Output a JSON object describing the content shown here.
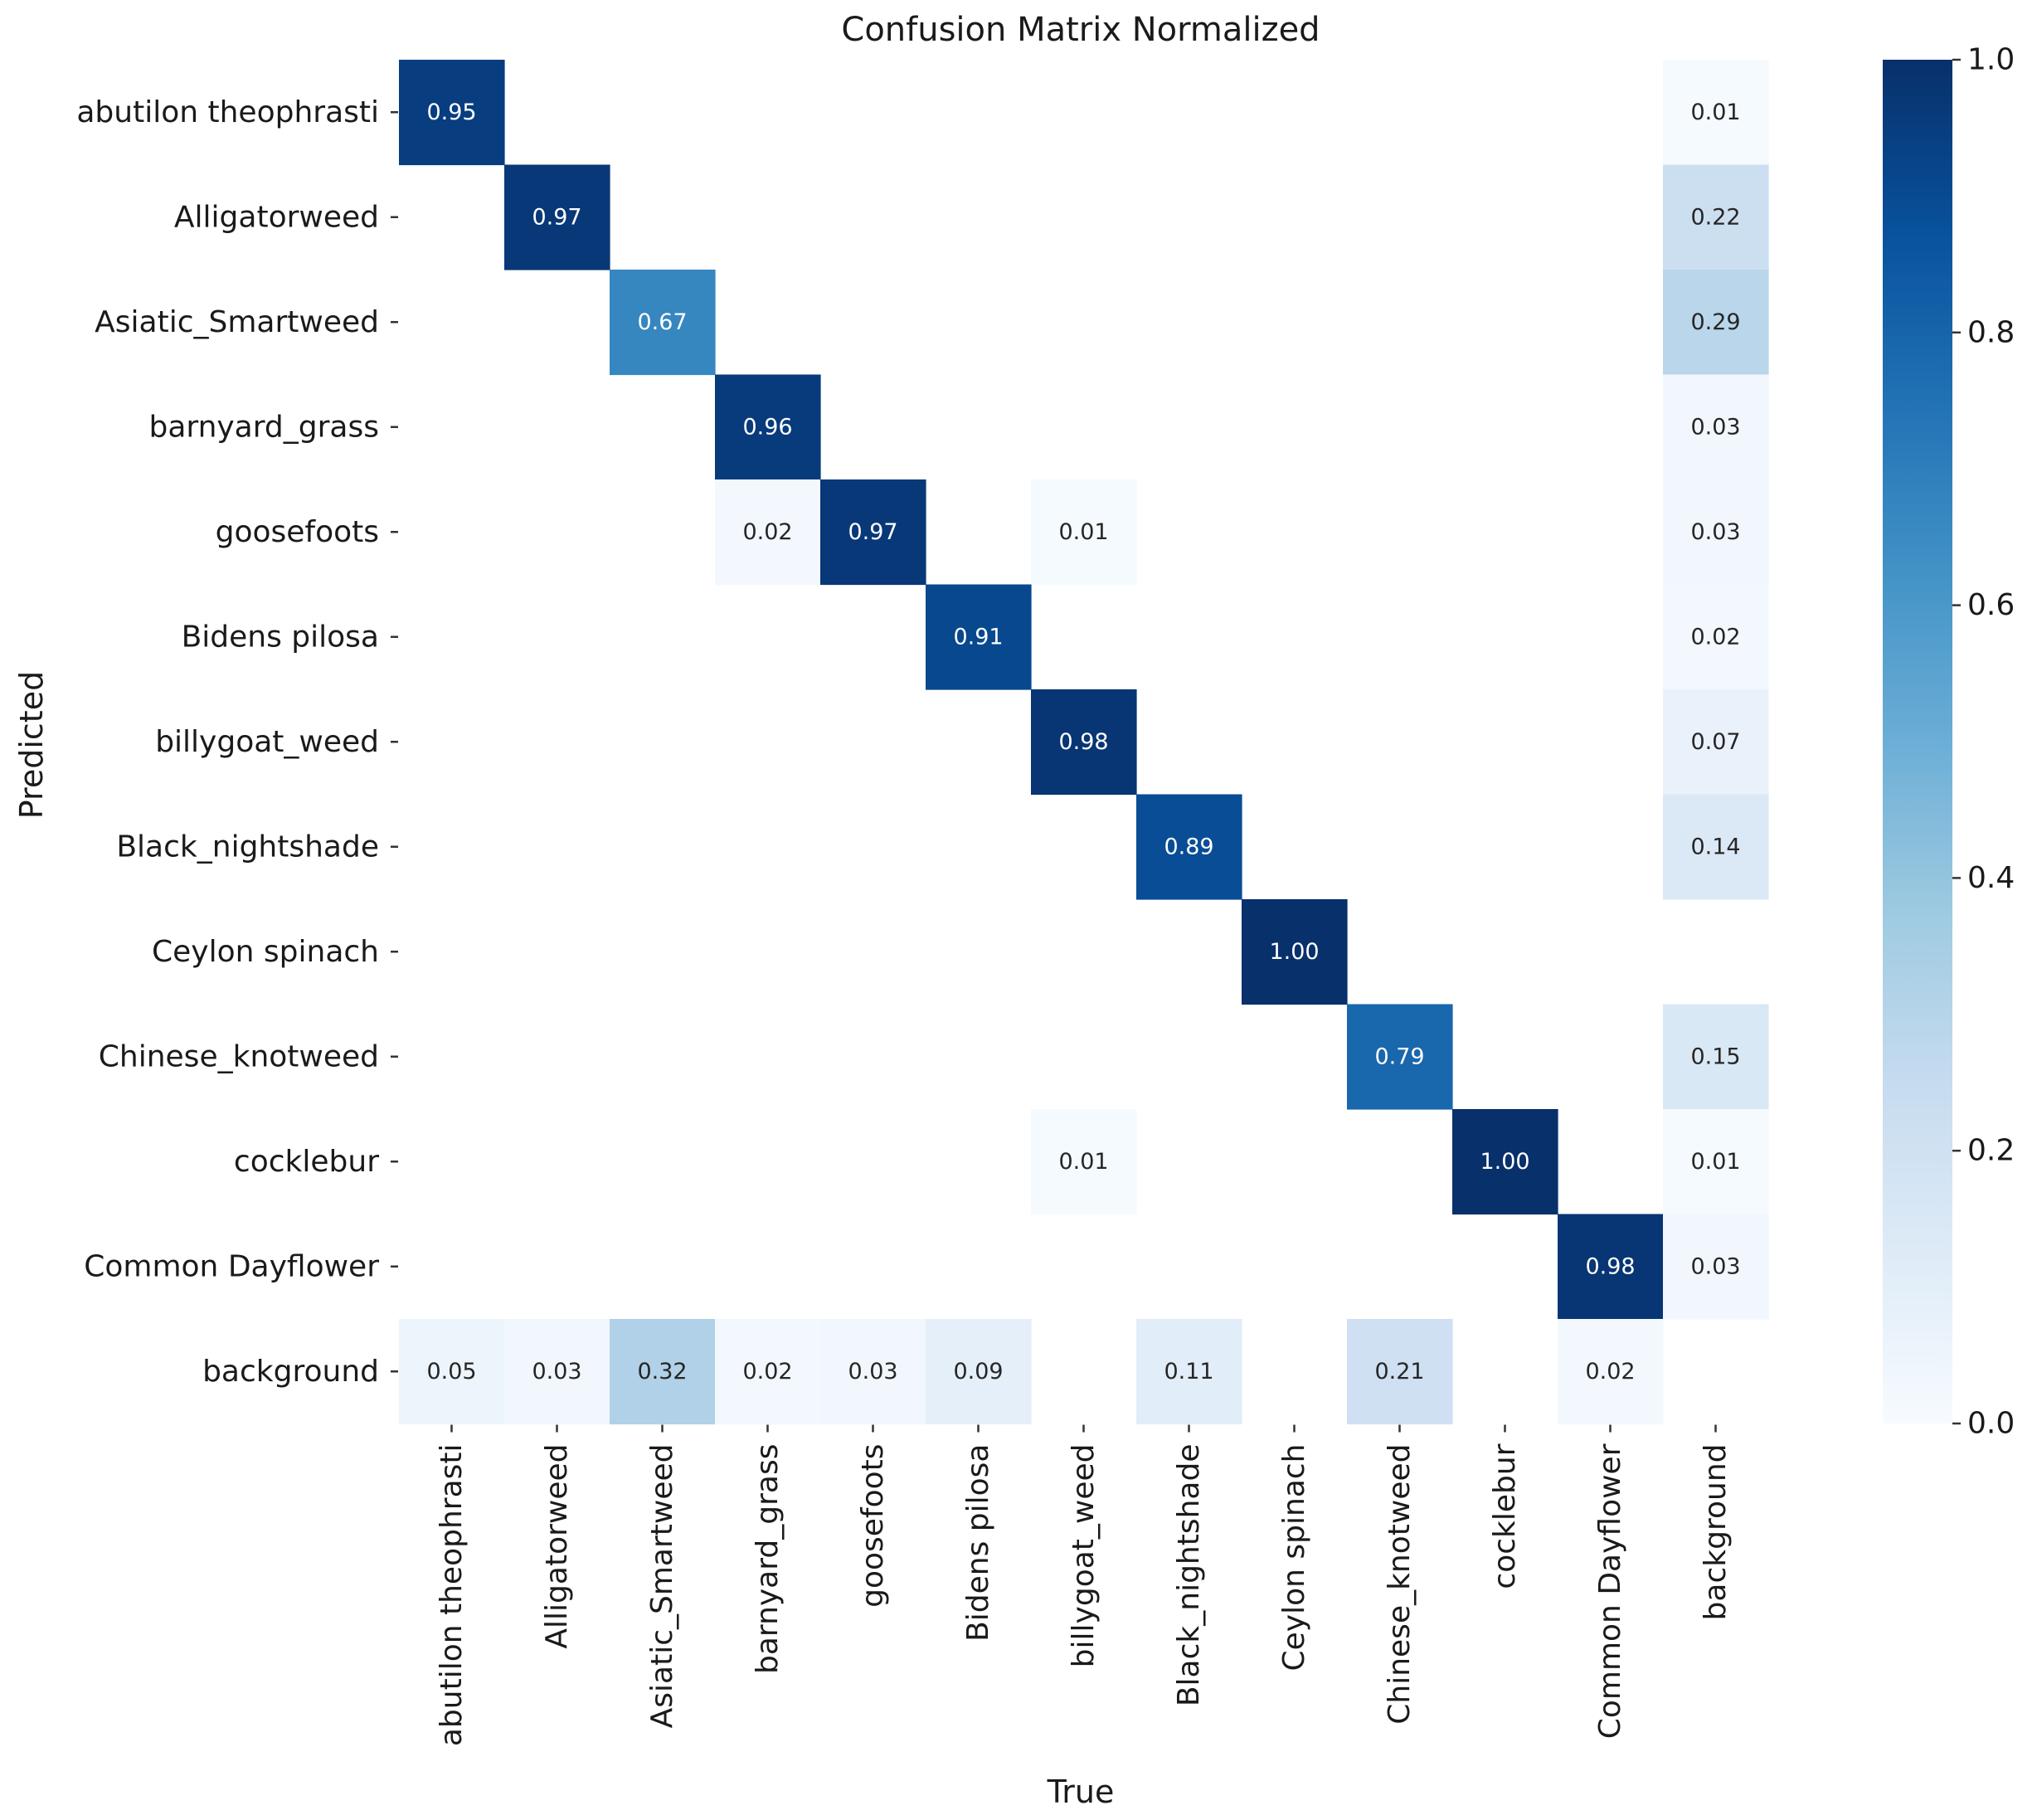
{
  "chart_data": {
    "type": "heatmap",
    "title": "Confusion Matrix Normalized",
    "xlabel": "True",
    "ylabel": "Predicted",
    "x_categories": [
      "abutilon theophrasti",
      "Alligatorweed",
      "Asiatic_Smartweed",
      "barnyard_grass",
      "goosefoots",
      "Bidens pilosa",
      "billygoat_weed",
      "Black_nightshade",
      "Ceylon spinach",
      "Chinese_knotweed",
      "cocklebur",
      "Common Dayflower",
      "background"
    ],
    "y_categories": [
      "abutilon theophrasti",
      "Alligatorweed",
      "Asiatic_Smartweed",
      "barnyard_grass",
      "goosefoots",
      "Bidens pilosa",
      "billygoat_weed",
      "Black_nightshade",
      "Ceylon spinach",
      "Chinese_knotweed",
      "cocklebur",
      "Common Dayflower",
      "background"
    ],
    "values": [
      [
        0.95,
        null,
        null,
        null,
        null,
        null,
        null,
        null,
        null,
        null,
        null,
        null,
        0.01
      ],
      [
        null,
        0.97,
        null,
        null,
        null,
        null,
        null,
        null,
        null,
        null,
        null,
        null,
        0.22
      ],
      [
        null,
        null,
        0.67,
        null,
        null,
        null,
        null,
        null,
        null,
        null,
        null,
        null,
        0.29
      ],
      [
        null,
        null,
        null,
        0.96,
        null,
        null,
        null,
        null,
        null,
        null,
        null,
        null,
        0.03
      ],
      [
        null,
        null,
        null,
        0.02,
        0.97,
        null,
        0.01,
        null,
        null,
        null,
        null,
        null,
        0.03
      ],
      [
        null,
        null,
        null,
        null,
        null,
        0.91,
        null,
        null,
        null,
        null,
        null,
        null,
        0.02
      ],
      [
        null,
        null,
        null,
        null,
        null,
        null,
        0.98,
        null,
        null,
        null,
        null,
        null,
        0.07
      ],
      [
        null,
        null,
        null,
        null,
        null,
        null,
        null,
        0.89,
        null,
        null,
        null,
        null,
        0.14
      ],
      [
        null,
        null,
        null,
        null,
        null,
        null,
        null,
        null,
        1.0,
        null,
        null,
        null,
        null
      ],
      [
        null,
        null,
        null,
        null,
        null,
        null,
        null,
        null,
        null,
        0.79,
        null,
        null,
        0.15
      ],
      [
        null,
        null,
        null,
        null,
        null,
        null,
        0.01,
        null,
        null,
        null,
        1.0,
        null,
        0.01
      ],
      [
        null,
        null,
        null,
        null,
        null,
        null,
        null,
        null,
        null,
        null,
        null,
        0.98,
        0.03
      ],
      [
        0.05,
        0.03,
        0.32,
        0.02,
        0.03,
        0.09,
        null,
        0.11,
        null,
        0.21,
        null,
        0.02,
        null
      ]
    ],
    "value_format": "0.00",
    "colormap": "Blues",
    "colorbar": {
      "range": [
        0.0,
        1.0
      ],
      "ticks": [
        0.0,
        0.2,
        0.4,
        0.6,
        0.8,
        1.0
      ],
      "tick_labels": [
        "0.0",
        "0.2",
        "0.4",
        "0.6",
        "0.8",
        "1.0"
      ]
    }
  }
}
